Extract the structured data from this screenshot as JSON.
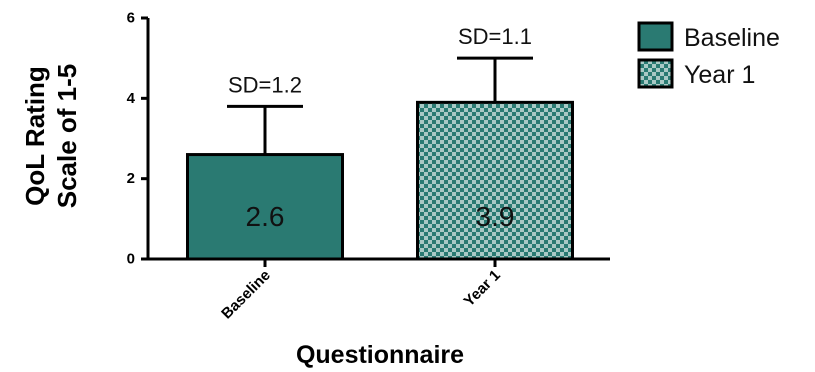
{
  "chart_data": {
    "type": "bar",
    "categories": [
      "Baseline",
      "Year 1"
    ],
    "values": [
      2.6,
      3.9
    ],
    "errors": [
      1.2,
      1.1
    ],
    "error_labels": [
      "SD=1.2",
      "SD=1.1"
    ],
    "data_labels": [
      "2.6",
      "3.9"
    ],
    "legend": [
      "Baseline",
      "Year 1"
    ],
    "legend_position": "top-right",
    "xlabel": "Questionnaire",
    "ylabel_lines": [
      "QoL Rating",
      "Scale of 1-5"
    ],
    "yticks": [
      "0",
      "2",
      "4",
      "6"
    ],
    "ylim": [
      0,
      6
    ],
    "colors": {
      "bar_fill": "#2a7a72",
      "checker_dark": "#2a7a72",
      "checker_light": "#a9c9c5",
      "outline": "#000000"
    },
    "grid": false
  }
}
